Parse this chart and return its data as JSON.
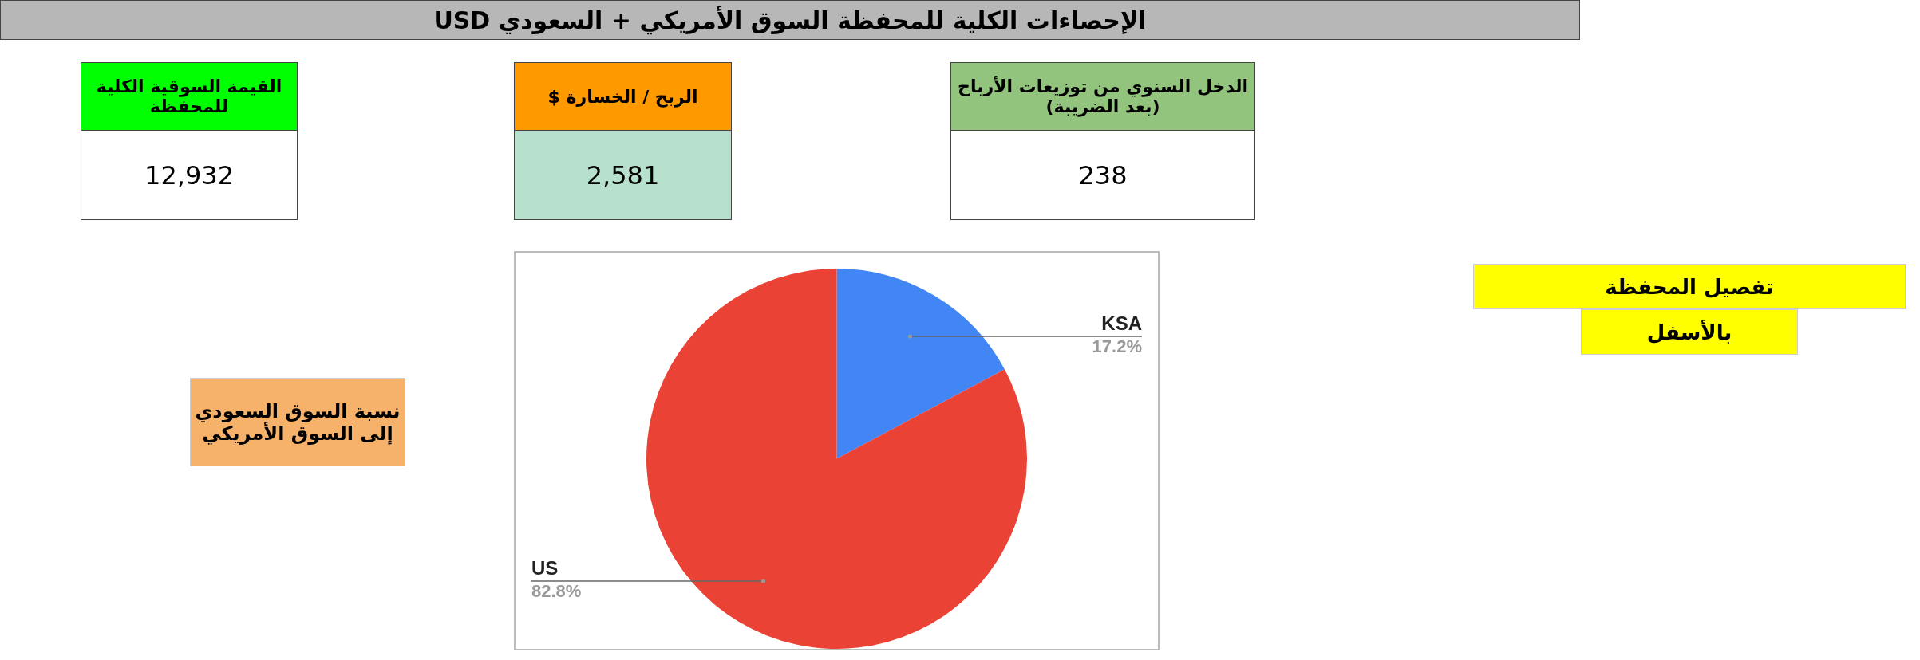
{
  "chart_data": [
    {
      "type": "other",
      "title": "الإحصاءات الكلية للمحفظة السوق الأمريكي + السعودي USD",
      "colors": [
        "#b7b7b7"
      ]
    },
    {
      "type": "other",
      "title": "القيمة السوقية الكلية للمحفظة",
      "annotations": [
        "12,932"
      ],
      "colors": [
        "#00ff00",
        "#ffffff"
      ]
    },
    {
      "type": "other",
      "title": "الربح / الخسارة $",
      "annotations": [
        "2,581"
      ],
      "colors": [
        "#ff9900",
        "#b7e1cd"
      ]
    },
    {
      "type": "other",
      "title": "الدخل السنوي من توزيعات الأرباح (بعد الضريبة)",
      "annotations": [
        "238"
      ],
      "colors": [
        "#93c47d",
        "#ffffff"
      ]
    },
    {
      "type": "pie",
      "title": "نسبة السوق السعودي إلى السوق الأمريكي",
      "categories": [
        "KSA",
        "US"
      ],
      "values": [
        17.2,
        82.8
      ],
      "value_labels": [
        "17.2%",
        "82.8%"
      ],
      "colors": [
        "#4285f4",
        "#ea4335"
      ],
      "legend": false
    },
    {
      "type": "other",
      "title": "تفصيل المحفظة",
      "annotations": [
        "بالأسفل"
      ],
      "colors": [
        "#ffff00"
      ]
    }
  ]
}
